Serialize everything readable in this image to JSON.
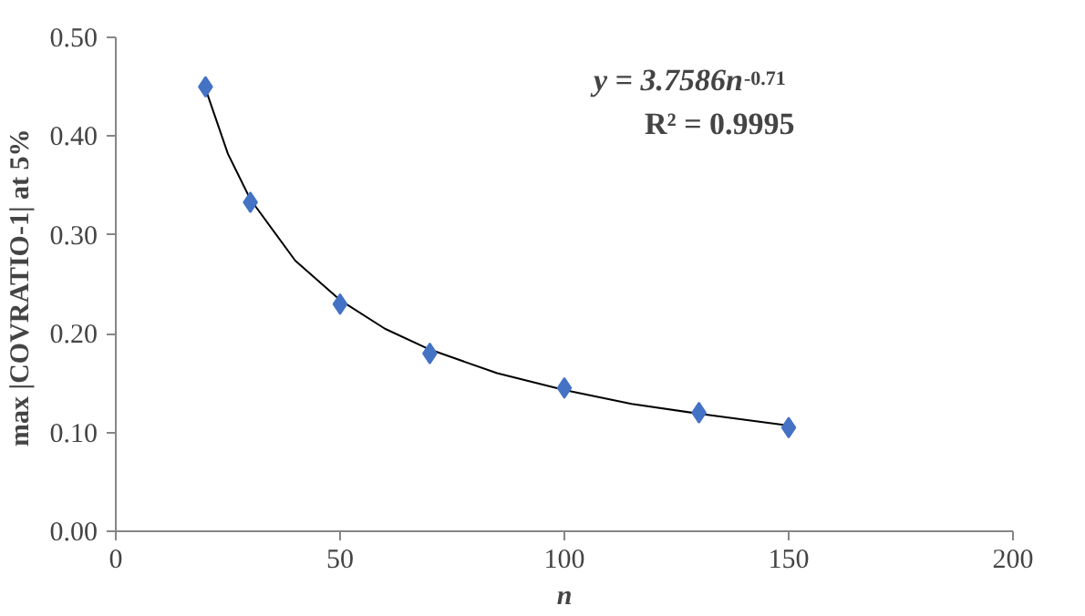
{
  "chart_data": {
    "type": "scatter",
    "xlabel": "n",
    "ylabel": "max |COVRATIO-1|  at 5%",
    "xlim": [
      0,
      200
    ],
    "xticks": [
      0,
      50,
      100,
      150,
      200
    ],
    "ylim": [
      0,
      0.5
    ],
    "yticks": [
      {
        "value": 0,
        "label": "0.00"
      },
      {
        "value": 0.1,
        "label": "0.10"
      },
      {
        "value": 0.2,
        "label": "0.20"
      },
      {
        "value": 0.3,
        "label": "0.30"
      },
      {
        "value": 0.4,
        "label": "0.40"
      },
      {
        "value": 0.5,
        "label": "0.50"
      }
    ],
    "grid": false,
    "series": [
      {
        "marker": "diamond",
        "color": "#4472c4",
        "x": [
          20,
          30,
          50,
          70,
          100,
          130,
          150
        ],
        "values": [
          0.45,
          0.333,
          0.23,
          0.18,
          0.145,
          0.12,
          0.105
        ]
      },
      {
        "type": "line",
        "marker": "none",
        "color": "#000000",
        "x": [
          20,
          25,
          30,
          40,
          50,
          60,
          70,
          85,
          100,
          115,
          130,
          150
        ],
        "values": [
          0.448,
          0.382,
          0.336,
          0.274,
          0.234,
          0.205,
          0.184,
          0.16,
          0.143,
          0.129,
          0.119,
          0.107
        ]
      }
    ],
    "annotations": [
      "y = 3.7586n$^{-0.71}$",
      "R² = 0.9995"
    ]
  }
}
